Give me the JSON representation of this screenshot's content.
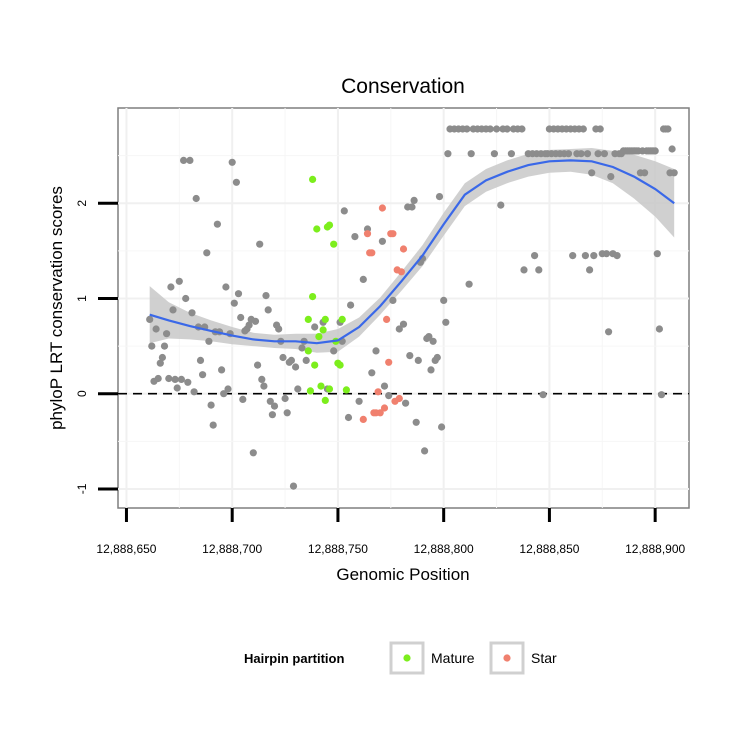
{
  "chart_data": {
    "type": "scatter",
    "title": "Conservation",
    "xlabel": "Genomic Position",
    "ylabel": "phyloP LRT conservation scores",
    "xlim": [
      12888646,
      12888916
    ],
    "ylim": [
      -1.2,
      3.0
    ],
    "x_ticks": [
      12888650,
      12888700,
      12888750,
      12888800,
      12888850,
      12888900
    ],
    "x_tick_labels": [
      "12,888,650",
      "12,888,700",
      "12,888,750",
      "12,888,800",
      "12,888,850",
      "12,888,900"
    ],
    "y_ticks": [
      -1,
      0,
      1,
      2
    ],
    "y_tick_labels": [
      "-1",
      "0",
      "1",
      "2"
    ],
    "reference_line": {
      "y": 0,
      "style": "dashed"
    },
    "grid": true,
    "legend": {
      "title": "Hairpin partition",
      "placement": "bottom",
      "entries": [
        {
          "label": "Mature",
          "color": "#7cee1c"
        },
        {
          "label": "Star",
          "color": "#f0806e"
        }
      ]
    },
    "colors": {
      "other": "#8c8c8c",
      "mature": "#7cee1c",
      "star": "#f0806e",
      "smooth": "#3a68e8",
      "ribbon": "#c8c8c8"
    },
    "series": [
      {
        "name": "Other",
        "points": [
          [
            12888661,
            0.78
          ],
          [
            12888662,
            0.5
          ],
          [
            12888663,
            0.13
          ],
          [
            12888664,
            0.68
          ],
          [
            12888665,
            0.16
          ],
          [
            12888666,
            0.32
          ],
          [
            12888667,
            0.38
          ],
          [
            12888668,
            0.5
          ],
          [
            12888669,
            0.63
          ],
          [
            12888670,
            0.16
          ],
          [
            12888671,
            1.12
          ],
          [
            12888672,
            0.88
          ],
          [
            12888673,
            0.15
          ],
          [
            12888674,
            0.06
          ],
          [
            12888675,
            1.18
          ],
          [
            12888676,
            0.15
          ],
          [
            12888677,
            2.45
          ],
          [
            12888678,
            1.0
          ],
          [
            12888679,
            0.12
          ],
          [
            12888680,
            2.45
          ],
          [
            12888681,
            0.85
          ],
          [
            12888682,
            0.02
          ],
          [
            12888683,
            2.05
          ],
          [
            12888684,
            0.7
          ],
          [
            12888685,
            0.35
          ],
          [
            12888686,
            0.2
          ],
          [
            12888687,
            0.7
          ],
          [
            12888688,
            1.48
          ],
          [
            12888689,
            0.55
          ],
          [
            12888690,
            -0.12
          ],
          [
            12888691,
            -0.33
          ],
          [
            12888692,
            0.65
          ],
          [
            12888693,
            1.78
          ],
          [
            12888694,
            0.65
          ],
          [
            12888695,
            0.25
          ],
          [
            12888696,
            0.0
          ],
          [
            12888697,
            1.12
          ],
          [
            12888698,
            0.05
          ],
          [
            12888699,
            0.63
          ],
          [
            12888700,
            2.43
          ],
          [
            12888701,
            0.95
          ],
          [
            12888702,
            2.22
          ],
          [
            12888703,
            1.05
          ],
          [
            12888704,
            0.8
          ],
          [
            12888705,
            -0.06
          ],
          [
            12888706,
            0.66
          ],
          [
            12888707,
            0.68
          ],
          [
            12888708,
            0.72
          ],
          [
            12888709,
            0.78
          ],
          [
            12888710,
            -0.62
          ],
          [
            12888711,
            0.76
          ],
          [
            12888712,
            0.3
          ],
          [
            12888713,
            1.57
          ],
          [
            12888714,
            0.15
          ],
          [
            12888715,
            0.08
          ],
          [
            12888716,
            1.03
          ],
          [
            12888717,
            0.88
          ],
          [
            12888718,
            -0.08
          ],
          [
            12888719,
            -0.22
          ],
          [
            12888720,
            -0.13
          ],
          [
            12888721,
            0.72
          ],
          [
            12888722,
            0.68
          ],
          [
            12888723,
            0.55
          ],
          [
            12888724,
            0.38
          ],
          [
            12888725,
            -0.05
          ],
          [
            12888726,
            -0.2
          ],
          [
            12888727,
            0.33
          ],
          [
            12888728,
            0.35
          ],
          [
            12888729,
            -0.97
          ],
          [
            12888730,
            0.28
          ],
          [
            12888731,
            0.05
          ],
          [
            12888733,
            0.48
          ],
          [
            12888734,
            0.55
          ],
          [
            12888735,
            0.35
          ],
          [
            12888739,
            0.7
          ],
          [
            12888743,
            0.75
          ],
          [
            12888745,
            0.05
          ],
          [
            12888748,
            0.45
          ],
          [
            12888751,
            0.75
          ],
          [
            12888752,
            0.55
          ],
          [
            12888753,
            1.92
          ],
          [
            12888755,
            -0.25
          ],
          [
            12888756,
            0.93
          ],
          [
            12888758,
            1.65
          ],
          [
            12888760,
            -0.08
          ],
          [
            12888762,
            1.2
          ],
          [
            12888764,
            1.73
          ],
          [
            12888766,
            0.22
          ],
          [
            12888768,
            0.45
          ],
          [
            12888771,
            1.6
          ],
          [
            12888772,
            0.08
          ],
          [
            12888774,
            -0.02
          ],
          [
            12888776,
            0.98
          ],
          [
            12888779,
            0.68
          ],
          [
            12888781,
            0.73
          ],
          [
            12888782,
            -0.1
          ],
          [
            12888783,
            1.96
          ],
          [
            12888784,
            0.4
          ],
          [
            12888785,
            1.96
          ],
          [
            12888786,
            2.03
          ],
          [
            12888787,
            -0.3
          ],
          [
            12888788,
            0.35
          ],
          [
            12888789,
            1.38
          ],
          [
            12888790,
            1.42
          ],
          [
            12888791,
            -0.6
          ],
          [
            12888792,
            0.58
          ],
          [
            12888793,
            0.6
          ],
          [
            12888794,
            0.25
          ],
          [
            12888795,
            0.55
          ],
          [
            12888796,
            0.35
          ],
          [
            12888797,
            0.38
          ],
          [
            12888798,
            2.07
          ],
          [
            12888799,
            -0.35
          ],
          [
            12888800,
            0.98
          ],
          [
            12888801,
            0.75
          ],
          [
            12888802,
            2.52
          ],
          [
            12888803,
            2.78
          ],
          [
            12888805,
            2.78
          ],
          [
            12888807,
            2.78
          ],
          [
            12888809,
            2.78
          ],
          [
            12888811,
            2.78
          ],
          [
            12888812,
            1.15
          ],
          [
            12888813,
            2.52
          ],
          [
            12888814,
            2.78
          ],
          [
            12888816,
            2.78
          ],
          [
            12888818,
            2.78
          ],
          [
            12888820,
            2.78
          ],
          [
            12888822,
            2.78
          ],
          [
            12888824,
            2.52
          ],
          [
            12888825,
            2.78
          ],
          [
            12888827,
            1.98
          ],
          [
            12888828,
            2.78
          ],
          [
            12888830,
            2.78
          ],
          [
            12888832,
            2.52
          ],
          [
            12888833,
            2.78
          ],
          [
            12888835,
            2.78
          ],
          [
            12888837,
            2.78
          ],
          [
            12888838,
            1.3
          ],
          [
            12888840,
            2.52
          ],
          [
            12888842,
            2.52
          ],
          [
            12888843,
            1.45
          ],
          [
            12888844,
            2.52
          ],
          [
            12888845,
            1.3
          ],
          [
            12888846,
            2.52
          ],
          [
            12888847,
            -0.01
          ],
          [
            12888848,
            2.52
          ],
          [
            12888849,
            2.52
          ],
          [
            12888850,
            2.78
          ],
          [
            12888851,
            2.52
          ],
          [
            12888852,
            2.78
          ],
          [
            12888853,
            2.52
          ],
          [
            12888854,
            2.78
          ],
          [
            12888855,
            2.52
          ],
          [
            12888856,
            2.78
          ],
          [
            12888857,
            2.52
          ],
          [
            12888858,
            2.78
          ],
          [
            12888859,
            2.52
          ],
          [
            12888860,
            2.78
          ],
          [
            12888861,
            1.45
          ],
          [
            12888862,
            2.78
          ],
          [
            12888863,
            2.52
          ],
          [
            12888864,
            2.78
          ],
          [
            12888865,
            2.52
          ],
          [
            12888866,
            2.78
          ],
          [
            12888867,
            1.45
          ],
          [
            12888868,
            2.52
          ],
          [
            12888869,
            1.3
          ],
          [
            12888870,
            2.32
          ],
          [
            12888871,
            1.45
          ],
          [
            12888872,
            2.78
          ],
          [
            12888873,
            2.52
          ],
          [
            12888874,
            2.78
          ],
          [
            12888875,
            1.47
          ],
          [
            12888876,
            2.52
          ],
          [
            12888877,
            1.47
          ],
          [
            12888878,
            0.65
          ],
          [
            12888879,
            2.28
          ],
          [
            12888880,
            1.47
          ],
          [
            12888881,
            2.52
          ],
          [
            12888882,
            1.45
          ],
          [
            12888883,
            2.52
          ],
          [
            12888884,
            2.52
          ],
          [
            12888885,
            2.55
          ],
          [
            12888886,
            2.55
          ],
          [
            12888887,
            2.55
          ],
          [
            12888888,
            2.55
          ],
          [
            12888889,
            2.55
          ],
          [
            12888890,
            2.55
          ],
          [
            12888891,
            2.55
          ],
          [
            12888892,
            2.55
          ],
          [
            12888893,
            2.32
          ],
          [
            12888894,
            2.55
          ],
          [
            12888895,
            2.32
          ],
          [
            12888896,
            2.55
          ],
          [
            12888897,
            2.55
          ],
          [
            12888898,
            2.55
          ],
          [
            12888899,
            2.55
          ],
          [
            12888900,
            2.55
          ],
          [
            12888901,
            1.47
          ],
          [
            12888902,
            0.68
          ],
          [
            12888903,
            -0.01
          ],
          [
            12888904,
            2.78
          ],
          [
            12888905,
            2.78
          ],
          [
            12888906,
            2.78
          ],
          [
            12888907,
            2.32
          ],
          [
            12888908,
            2.57
          ],
          [
            12888909,
            2.32
          ]
        ]
      },
      {
        "name": "Mature",
        "points": [
          [
            12888736,
            0.78
          ],
          [
            12888736,
            0.45
          ],
          [
            12888737,
            0.03
          ],
          [
            12888738,
            2.25
          ],
          [
            12888738,
            1.02
          ],
          [
            12888739,
            0.3
          ],
          [
            12888740,
            1.73
          ],
          [
            12888741,
            0.6
          ],
          [
            12888742,
            0.08
          ],
          [
            12888743,
            0.67
          ],
          [
            12888744,
            0.78
          ],
          [
            12888744,
            -0.07
          ],
          [
            12888745,
            1.75
          ],
          [
            12888746,
            1.77
          ],
          [
            12888746,
            0.05
          ],
          [
            12888748,
            1.57
          ],
          [
            12888749,
            0.55
          ],
          [
            12888750,
            0.32
          ],
          [
            12888751,
            0.3
          ],
          [
            12888752,
            0.78
          ],
          [
            12888754,
            0.04
          ]
        ]
      },
      {
        "name": "Star",
        "points": [
          [
            12888762,
            -0.27
          ],
          [
            12888764,
            1.68
          ],
          [
            12888765,
            1.48
          ],
          [
            12888766,
            1.48
          ],
          [
            12888767,
            -0.2
          ],
          [
            12888768,
            -0.2
          ],
          [
            12888769,
            0.02
          ],
          [
            12888770,
            -0.2
          ],
          [
            12888771,
            1.95
          ],
          [
            12888772,
            -0.15
          ],
          [
            12888773,
            0.78
          ],
          [
            12888774,
            0.33
          ],
          [
            12888775,
            1.68
          ],
          [
            12888776,
            1.68
          ],
          [
            12888777,
            -0.08
          ],
          [
            12888778,
            1.3
          ],
          [
            12888779,
            -0.05
          ],
          [
            12888780,
            1.28
          ],
          [
            12888781,
            1.52
          ]
        ]
      }
    ],
    "smooth_fit": {
      "x": [
        12888661,
        12888670,
        12888680,
        12888690,
        12888700,
        12888710,
        12888720,
        12888730,
        12888740,
        12888750,
        12888760,
        12888770,
        12888780,
        12888790,
        12888800,
        12888810,
        12888820,
        12888830,
        12888840,
        12888850,
        12888860,
        12888870,
        12888880,
        12888890,
        12888900,
        12888909
      ],
      "y": [
        0.83,
        0.77,
        0.71,
        0.66,
        0.61,
        0.57,
        0.55,
        0.55,
        0.53,
        0.56,
        0.7,
        0.92,
        1.18,
        1.45,
        1.78,
        2.09,
        2.24,
        2.33,
        2.4,
        2.44,
        2.45,
        2.44,
        2.38,
        2.28,
        2.15,
        2.0
      ],
      "lower": [
        0.53,
        0.58,
        0.57,
        0.55,
        0.52,
        0.5,
        0.48,
        0.47,
        0.43,
        0.44,
        0.6,
        0.83,
        1.08,
        1.34,
        1.66,
        1.97,
        2.12,
        2.21,
        2.28,
        2.32,
        2.33,
        2.3,
        2.21,
        2.05,
        1.86,
        1.64
      ],
      "upper": [
        1.13,
        0.96,
        0.85,
        0.77,
        0.7,
        0.64,
        0.62,
        0.63,
        0.63,
        0.68,
        0.8,
        1.01,
        1.28,
        1.56,
        1.9,
        2.21,
        2.36,
        2.45,
        2.52,
        2.56,
        2.57,
        2.58,
        2.55,
        2.51,
        2.44,
        2.36
      ]
    }
  }
}
